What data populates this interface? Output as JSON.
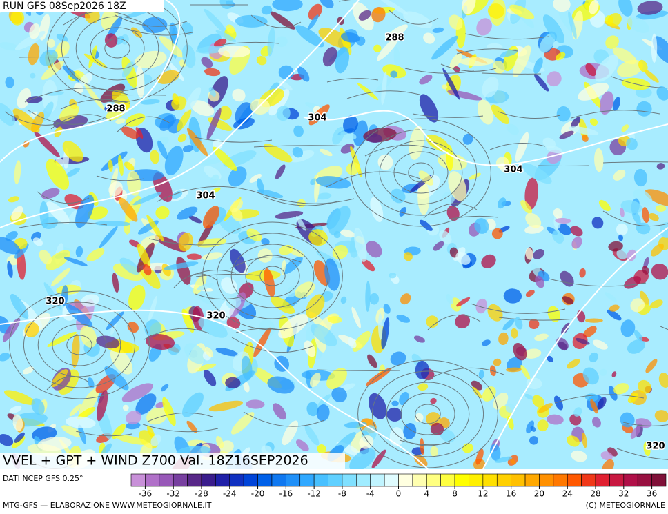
{
  "run_label": "RUN GFS 08Sep2026 18Z",
  "map_title": "VVEL + GPT + WIND Z700 Val. 18Z16SEP2026",
  "contour_labels": [
    "288",
    "288",
    "304",
    "304",
    "304",
    "320",
    "320",
    "320"
  ],
  "colorbar": {
    "caption": "DATI NCEP GFS 0.25°",
    "bounds": [
      -38,
      -36,
      -34,
      -32,
      -30,
      -28,
      -26,
      -24,
      -22,
      -20,
      -18,
      -16,
      -14,
      -12,
      -10,
      -8,
      -6,
      -4,
      -2,
      0,
      2,
      4,
      6,
      8,
      10,
      12,
      14,
      16,
      18,
      20,
      22,
      24,
      26,
      28,
      30,
      32,
      34,
      36,
      38
    ],
    "colors": [
      "#c890d8",
      "#b070c8",
      "#9858b8",
      "#7840a0",
      "#582888",
      "#3a1c8c",
      "#2020a8",
      "#1030c0",
      "#0044d8",
      "#0060e8",
      "#1078f0",
      "#2090f8",
      "#30a8ff",
      "#48c0ff",
      "#60d0ff",
      "#80e0ff",
      "#a0ecff",
      "#c0f4ff",
      "#e0fcff",
      "#ffffe0",
      "#ffffb0",
      "#ffff80",
      "#ffff40",
      "#ffff00",
      "#fff000",
      "#ffe000",
      "#ffd000",
      "#ffc000",
      "#ffa800",
      "#ff9000",
      "#ff7800",
      "#ff5800",
      "#f03818",
      "#e02030",
      "#c81840",
      "#b01048",
      "#981040",
      "#801038"
    ],
    "ticks": [
      -36,
      -32,
      -28,
      -24,
      -20,
      -16,
      -12,
      -8,
      -4,
      0,
      4,
      8,
      12,
      16,
      20,
      24,
      28,
      32,
      36
    ]
  },
  "footer_left": "MTG-GFS — ELABORAZIONE WWW.METEOGIORNALE.IT",
  "footer_right": "(C) METEOGIORNALE"
}
